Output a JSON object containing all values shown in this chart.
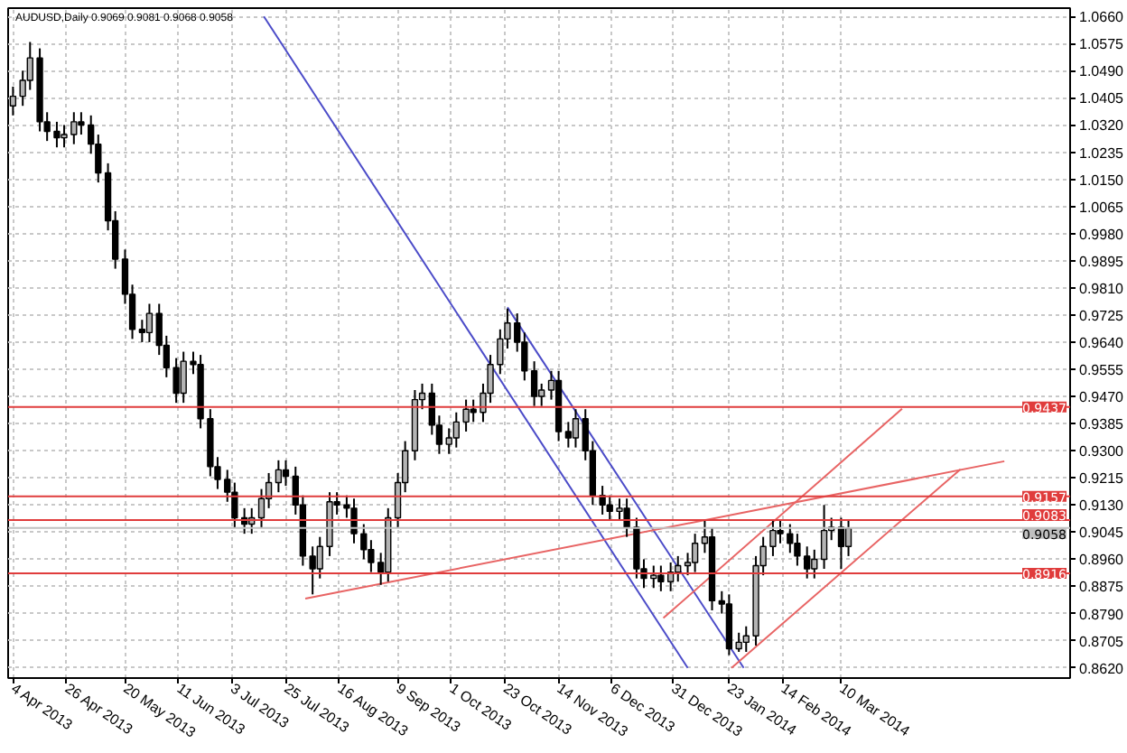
{
  "chart_data": {
    "type": "candlestick",
    "title": "AUDUSD,Daily 0.9069 0.9081 0.9068 0.9058",
    "x": [
      "2013-04-04",
      "2013-04-08",
      "2013-04-11",
      "2013-04-15",
      "2013-04-18",
      "2013-04-22",
      "2013-04-25",
      "2013-04-29",
      "2013-05-02",
      "2013-05-06",
      "2013-05-09",
      "2013-05-13",
      "2013-05-16",
      "2013-05-20",
      "2013-05-23",
      "2013-05-27",
      "2013-05-30",
      "2013-06-03",
      "2013-06-06",
      "2013-06-10",
      "2013-06-13",
      "2013-06-17",
      "2013-06-20",
      "2013-06-24",
      "2013-06-27",
      "2013-07-01",
      "2013-07-04",
      "2013-07-08",
      "2013-07-11",
      "2013-07-15",
      "2013-07-18",
      "2013-07-22",
      "2013-07-25",
      "2013-07-29",
      "2013-08-01",
      "2013-08-05",
      "2013-08-08",
      "2013-08-12",
      "2013-08-15",
      "2013-08-19",
      "2013-08-22",
      "2013-08-26",
      "2013-08-29",
      "2013-09-02",
      "2013-09-05",
      "2013-09-09",
      "2013-09-12",
      "2013-09-16",
      "2013-09-19",
      "2013-09-23",
      "2013-09-26",
      "2013-09-30",
      "2013-10-03",
      "2013-10-07",
      "2013-10-10",
      "2013-10-14",
      "2013-10-17",
      "2013-10-21",
      "2013-10-24",
      "2013-10-28",
      "2013-10-31",
      "2013-11-04",
      "2013-11-07",
      "2013-11-11",
      "2013-11-14",
      "2013-11-18",
      "2013-11-21",
      "2013-11-25",
      "2013-11-28",
      "2013-12-02",
      "2013-12-05",
      "2013-12-09",
      "2013-12-12",
      "2013-12-16",
      "2013-12-19",
      "2013-12-23",
      "2013-12-26",
      "2013-12-30",
      "2014-01-02",
      "2014-01-06",
      "2014-01-09",
      "2014-01-13",
      "2014-01-16",
      "2014-01-20",
      "2014-01-23",
      "2014-01-27",
      "2014-01-30",
      "2014-02-03",
      "2014-02-06",
      "2014-02-10",
      "2014-02-13",
      "2014-02-17",
      "2014-02-20",
      "2014-02-24",
      "2014-02-27",
      "2014-03-03",
      "2014-03-06",
      "2014-03-10",
      "2014-03-13"
    ],
    "ohlc": [
      [
        1.038,
        1.044,
        1.035,
        1.041
      ],
      [
        1.041,
        1.049,
        1.038,
        1.046
      ],
      [
        1.046,
        1.058,
        1.043,
        1.053
      ],
      [
        1.053,
        1.056,
        1.03,
        1.033
      ],
      [
        1.033,
        1.036,
        1.027,
        1.03
      ],
      [
        1.03,
        1.033,
        1.025,
        1.028
      ],
      [
        1.028,
        1.032,
        1.025,
        1.029
      ],
      [
        1.029,
        1.036,
        1.026,
        1.033
      ],
      [
        1.033,
        1.036,
        1.029,
        1.032
      ],
      [
        1.032,
        1.035,
        1.023,
        1.026
      ],
      [
        1.026,
        1.029,
        1.014,
        1.017
      ],
      [
        1.017,
        1.02,
        0.999,
        1.002
      ],
      [
        1.002,
        1.005,
        0.987,
        0.99
      ],
      [
        0.99,
        0.993,
        0.976,
        0.979
      ],
      [
        0.979,
        0.982,
        0.965,
        0.968
      ],
      [
        0.968,
        0.971,
        0.964,
        0.967
      ],
      [
        0.967,
        0.976,
        0.964,
        0.973
      ],
      [
        0.973,
        0.976,
        0.96,
        0.963
      ],
      [
        0.963,
        0.966,
        0.953,
        0.956
      ],
      [
        0.956,
        0.959,
        0.945,
        0.948
      ],
      [
        0.948,
        0.961,
        0.945,
        0.958
      ],
      [
        0.958,
        0.961,
        0.954,
        0.957
      ],
      [
        0.957,
        0.96,
        0.937,
        0.94
      ],
      [
        0.94,
        0.943,
        0.922,
        0.925
      ],
      [
        0.925,
        0.928,
        0.918,
        0.921
      ],
      [
        0.921,
        0.924,
        0.914,
        0.917
      ],
      [
        0.917,
        0.92,
        0.906,
        0.909
      ],
      [
        0.909,
        0.912,
        0.904,
        0.907
      ],
      [
        0.907,
        0.912,
        0.904,
        0.909
      ],
      [
        0.909,
        0.918,
        0.906,
        0.915
      ],
      [
        0.915,
        0.923,
        0.912,
        0.92
      ],
      [
        0.92,
        0.927,
        0.917,
        0.924
      ],
      [
        0.924,
        0.927,
        0.919,
        0.922
      ],
      [
        0.922,
        0.925,
        0.91,
        0.913
      ],
      [
        0.913,
        0.916,
        0.894,
        0.897
      ],
      [
        0.897,
        0.9,
        0.885,
        0.893
      ],
      [
        0.893,
        0.903,
        0.89,
        0.9
      ],
      [
        0.9,
        0.917,
        0.897,
        0.914
      ],
      [
        0.914,
        0.917,
        0.91,
        0.913
      ],
      [
        0.913,
        0.916,
        0.909,
        0.912
      ],
      [
        0.912,
        0.915,
        0.901,
        0.904
      ],
      [
        0.904,
        0.907,
        0.896,
        0.899
      ],
      [
        0.899,
        0.902,
        0.892,
        0.895
      ],
      [
        0.895,
        0.898,
        0.888,
        0.892
      ],
      [
        0.892,
        0.912,
        0.889,
        0.909
      ],
      [
        0.909,
        0.923,
        0.906,
        0.92
      ],
      [
        0.92,
        0.933,
        0.917,
        0.93
      ],
      [
        0.93,
        0.949,
        0.927,
        0.946
      ],
      [
        0.946,
        0.951,
        0.943,
        0.948
      ],
      [
        0.948,
        0.951,
        0.935,
        0.938
      ],
      [
        0.938,
        0.941,
        0.929,
        0.932
      ],
      [
        0.932,
        0.937,
        0.929,
        0.934
      ],
      [
        0.934,
        0.942,
        0.931,
        0.939
      ],
      [
        0.939,
        0.946,
        0.936,
        0.943
      ],
      [
        0.943,
        0.946,
        0.939,
        0.942
      ],
      [
        0.942,
        0.951,
        0.939,
        0.948
      ],
      [
        0.948,
        0.96,
        0.945,
        0.957
      ],
      [
        0.957,
        0.968,
        0.954,
        0.965
      ],
      [
        0.965,
        0.9745,
        0.962,
        0.97
      ],
      [
        0.97,
        0.973,
        0.961,
        0.964
      ],
      [
        0.964,
        0.967,
        0.952,
        0.955
      ],
      [
        0.955,
        0.958,
        0.944,
        0.947
      ],
      [
        0.947,
        0.951,
        0.944,
        0.949
      ],
      [
        0.949,
        0.955,
        0.946,
        0.952
      ],
      [
        0.952,
        0.955,
        0.933,
        0.936
      ],
      [
        0.936,
        0.939,
        0.931,
        0.934
      ],
      [
        0.934,
        0.943,
        0.931,
        0.94
      ],
      [
        0.94,
        0.943,
        0.927,
        0.93
      ],
      [
        0.93,
        0.933,
        0.913,
        0.916
      ],
      [
        0.916,
        0.919,
        0.91,
        0.913
      ],
      [
        0.913,
        0.916,
        0.908,
        0.911
      ],
      [
        0.911,
        0.915,
        0.908,
        0.912
      ],
      [
        0.912,
        0.915,
        0.903,
        0.906
      ],
      [
        0.906,
        0.909,
        0.89,
        0.893
      ],
      [
        0.893,
        0.896,
        0.887,
        0.89
      ],
      [
        0.89,
        0.894,
        0.887,
        0.891
      ],
      [
        0.891,
        0.894,
        0.886,
        0.889
      ],
      [
        0.889,
        0.895,
        0.886,
        0.892
      ],
      [
        0.892,
        0.897,
        0.889,
        0.894
      ],
      [
        0.894,
        0.898,
        0.891,
        0.895
      ],
      [
        0.895,
        0.904,
        0.892,
        0.901
      ],
      [
        0.901,
        0.908,
        0.898,
        0.903
      ],
      [
        0.903,
        0.906,
        0.88,
        0.883
      ],
      [
        0.883,
        0.886,
        0.879,
        0.882
      ],
      [
        0.882,
        0.885,
        0.866,
        0.868
      ],
      [
        0.868,
        0.873,
        0.867,
        0.87
      ],
      [
        0.87,
        0.875,
        0.867,
        0.872
      ],
      [
        0.872,
        0.897,
        0.869,
        0.894
      ],
      [
        0.894,
        0.903,
        0.891,
        0.9
      ],
      [
        0.9,
        0.908,
        0.897,
        0.905
      ],
      [
        0.905,
        0.908,
        0.901,
        0.904
      ],
      [
        0.904,
        0.907,
        0.898,
        0.901
      ],
      [
        0.901,
        0.904,
        0.894,
        0.897
      ],
      [
        0.897,
        0.9,
        0.89,
        0.893
      ],
      [
        0.893,
        0.899,
        0.89,
        0.896
      ],
      [
        0.896,
        0.913,
        0.893,
        0.905
      ],
      [
        0.905,
        0.909,
        0.902,
        0.906
      ],
      [
        0.906,
        0.909,
        0.893,
        0.9
      ],
      [
        0.9,
        0.9081,
        0.897,
        0.9058
      ]
    ],
    "colors": [
      "#b4b4b4",
      "#b4b4b4",
      "#b4b4b4",
      "#000000",
      "#000000",
      "#000000",
      "#b4b4b4",
      "#b4b4b4",
      "#000000",
      "#000000",
      "#000000",
      "#000000",
      "#000000",
      "#000000",
      "#000000",
      "#000000",
      "#b4b4b4",
      "#000000",
      "#000000",
      "#000000",
      "#b4b4b4",
      "#000000",
      "#000000",
      "#000000",
      "#000000",
      "#000000",
      "#000000",
      "#000000",
      "#b4b4b4",
      "#b4b4b4",
      "#b4b4b4",
      "#b4b4b4",
      "#000000",
      "#000000",
      "#000000",
      "#000000",
      "#b4b4b4",
      "#b4b4b4",
      "#000000",
      "#000000",
      "#000000",
      "#000000",
      "#000000",
      "#000000",
      "#b4b4b4",
      "#b4b4b4",
      "#b4b4b4",
      "#b4b4b4",
      "#b4b4b4",
      "#000000",
      "#000000",
      "#b4b4b4",
      "#b4b4b4",
      "#b4b4b4",
      "#000000",
      "#b4b4b4",
      "#b4b4b4",
      "#b4b4b4",
      "#b4b4b4",
      "#000000",
      "#000000",
      "#000000",
      "#b4b4b4",
      "#b4b4b4",
      "#000000",
      "#000000",
      "#b4b4b4",
      "#000000",
      "#000000",
      "#000000",
      "#000000",
      "#b4b4b4",
      "#000000",
      "#000000",
      "#000000",
      "#b4b4b4",
      "#000000",
      "#b4b4b4",
      "#b4b4b4",
      "#b4b4b4",
      "#b4b4b4",
      "#b4b4b4",
      "#000000",
      "#000000",
      "#000000",
      "#b4b4b4",
      "#b4b4b4",
      "#b4b4b4",
      "#b4b4b4",
      "#b4b4b4",
      "#000000",
      "#000000",
      "#000000",
      "#000000",
      "#b4b4b4",
      "#b4b4b4",
      "#b4b4b4",
      "#000000",
      "#b4b4b4"
    ],
    "series": [
      {
        "type": "line",
        "color": "#4b4bc8",
        "x": [
          "2013-07-16",
          "2014-01-06"
        ],
        "values": [
          1.066,
          0.862
        ]
      },
      {
        "type": "line",
        "color": "#4b4bc8",
        "x": [
          "2013-10-24",
          "2014-01-29"
        ],
        "values": [
          0.9749,
          0.862
        ]
      },
      {
        "type": "line",
        "color": "#e86464",
        "x": [
          "2013-08-02",
          "2014-05-16"
        ],
        "values": [
          0.8837,
          0.9267
        ]
      },
      {
        "type": "line",
        "color": "#e86464",
        "x": [
          "2013-12-27",
          "2014-04-04"
        ],
        "values": [
          0.8776,
          0.9431
        ]
      },
      {
        "type": "line",
        "color": "#e86464",
        "x": [
          "2014-01-24",
          "2014-04-28"
        ],
        "values": [
          0.862,
          0.9242
        ]
      }
    ],
    "ref_lines": [
      {
        "axis": "y",
        "value": 0.9437,
        "label": "0.9437",
        "color": "#e03c3c"
      },
      {
        "axis": "y",
        "value": 0.9157,
        "label": "0.9157",
        "color": "#e03c3c"
      },
      {
        "axis": "y",
        "value": 0.9083,
        "label": "0.9083",
        "color": "#e03c3c"
      },
      {
        "axis": "y",
        "value": 0.9058,
        "label": "0.9058",
        "color": "#c0c0c0"
      },
      {
        "axis": "y",
        "value": 0.8916,
        "label": "0.8916",
        "color": "#e03c3c"
      }
    ],
    "xlim": [
      "2013-04-02",
      "2014-06-12"
    ],
    "ylim": [
      0.8588,
      1.0686
    ],
    "xticks": [
      {
        "value": "2013-04-04",
        "label": "4 Apr 2013"
      },
      {
        "value": "2013-04-26",
        "label": "26 Apr 2013"
      },
      {
        "value": "2013-05-20",
        "label": "20 May 2013"
      },
      {
        "value": "2013-06-11",
        "label": "11 Jun 2013"
      },
      {
        "value": "2013-07-03",
        "label": "3 Jul 2013"
      },
      {
        "value": "2013-07-25",
        "label": "25 Jul 2013"
      },
      {
        "value": "2013-08-16",
        "label": "16 Aug 2013"
      },
      {
        "value": "2013-09-09",
        "label": "9 Sep 2013"
      },
      {
        "value": "2013-10-01",
        "label": "1 Oct 2013"
      },
      {
        "value": "2013-10-23",
        "label": "23 Oct 2013"
      },
      {
        "value": "2013-11-14",
        "label": "14 Nov 2013"
      },
      {
        "value": "2013-12-06",
        "label": "6 Dec 2013"
      },
      {
        "value": "2013-12-31",
        "label": "31 Dec 2013"
      },
      {
        "value": "2014-01-23",
        "label": "23 Jan 2014"
      },
      {
        "value": "2014-02-14",
        "label": "14 Feb 2014"
      },
      {
        "value": "2014-03-10",
        "label": "10 Mar 2014"
      }
    ],
    "yticks": [
      {
        "value": 1.066,
        "label": "1.0660"
      },
      {
        "value": 1.0575,
        "label": "1.0575"
      },
      {
        "value": 1.049,
        "label": "1.0490"
      },
      {
        "value": 1.0405,
        "label": "1.0405"
      },
      {
        "value": 1.032,
        "label": "1.0320"
      },
      {
        "value": 1.0235,
        "label": "1.0235"
      },
      {
        "value": 1.015,
        "label": "1.0150"
      },
      {
        "value": 1.0065,
        "label": "1.0065"
      },
      {
        "value": 0.998,
        "label": "0.9980"
      },
      {
        "value": 0.9895,
        "label": "0.9895"
      },
      {
        "value": 0.981,
        "label": "0.9810"
      },
      {
        "value": 0.9725,
        "label": "0.9725"
      },
      {
        "value": 0.964,
        "label": "0.9640"
      },
      {
        "value": 0.9555,
        "label": "0.9555"
      },
      {
        "value": 0.947,
        "label": "0.9470"
      },
      {
        "value": 0.9385,
        "label": "0.9385"
      },
      {
        "value": 0.93,
        "label": "0.9300"
      },
      {
        "value": 0.9215,
        "label": "0.9215"
      },
      {
        "value": 0.913,
        "label": "0.9130"
      },
      {
        "value": 0.9045,
        "label": "0.9045"
      },
      {
        "value": 0.896,
        "label": "0.8960"
      },
      {
        "value": 0.8875,
        "label": "0.8875"
      },
      {
        "value": 0.879,
        "label": "0.8790"
      },
      {
        "value": 0.8705,
        "label": "0.8705"
      },
      {
        "value": 0.862,
        "label": "0.8620"
      }
    ],
    "grid": true
  }
}
